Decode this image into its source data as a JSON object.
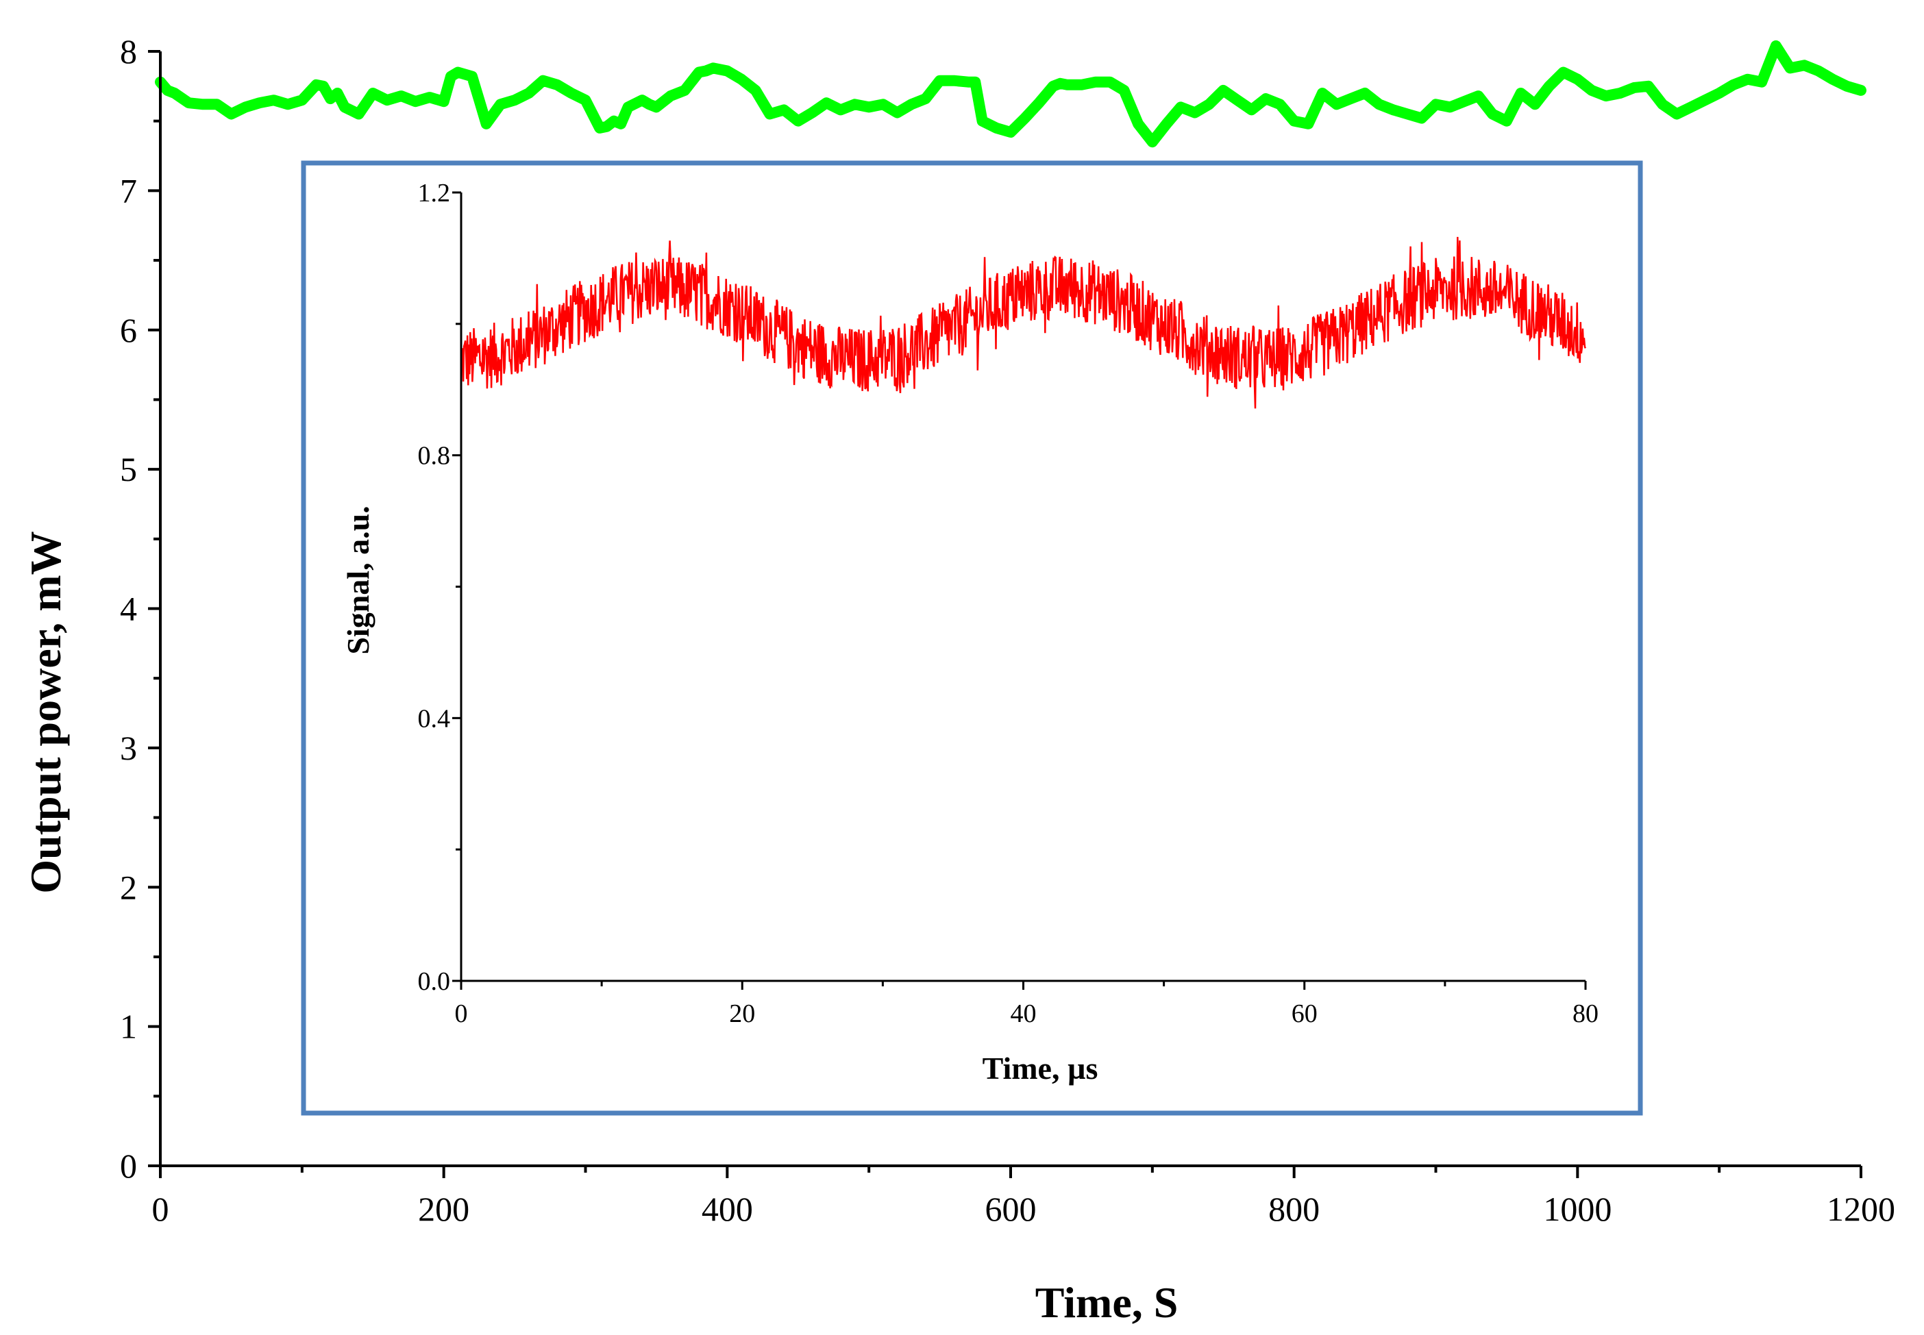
{
  "chart_data": [
    {
      "type": "line",
      "role": "main",
      "xlabel": "Time, S",
      "ylabel": "Output power, mW",
      "xlim": [
        0,
        1200
      ],
      "ylim": [
        0,
        8
      ],
      "xticks": [
        0,
        200,
        400,
        600,
        800,
        1000,
        1200
      ],
      "xtick_labels": [
        "0",
        "200",
        "400",
        "600",
        "800",
        "1000",
        "1200"
      ],
      "yticks": [
        0,
        1,
        2,
        3,
        4,
        5,
        6,
        7,
        8
      ],
      "ytick_labels": [
        "0",
        "1",
        "2",
        "3",
        "4",
        "5",
        "6",
        "7",
        "8"
      ],
      "series": [
        {
          "name": "Output power",
          "color": "#00ff00",
          "x": [
            0,
            5,
            10,
            20,
            30,
            40,
            50,
            60,
            70,
            80,
            90,
            100,
            110,
            115,
            120,
            125,
            130,
            140,
            150,
            160,
            170,
            180,
            190,
            200,
            205,
            210,
            220,
            225,
            230,
            240,
            250,
            260,
            270,
            280,
            290,
            300,
            310,
            315,
            320,
            325,
            330,
            340,
            345,
            350,
            360,
            370,
            380,
            385,
            390,
            400,
            410,
            420,
            430,
            440,
            450,
            460,
            470,
            480,
            490,
            500,
            510,
            520,
            530,
            540,
            550,
            560,
            570,
            575,
            580,
            590,
            600,
            610,
            620,
            630,
            635,
            640,
            650,
            660,
            670,
            680,
            690,
            700,
            710,
            720,
            730,
            740,
            750,
            760,
            770,
            780,
            790,
            800,
            810,
            820,
            830,
            840,
            850,
            860,
            870,
            880,
            890,
            900,
            910,
            920,
            930,
            940,
            950,
            960,
            970,
            980,
            990,
            1000,
            1010,
            1020,
            1030,
            1040,
            1050,
            1060,
            1070,
            1080,
            1090,
            1100,
            1110,
            1120,
            1130,
            1140,
            1150,
            1160,
            1170,
            1180,
            1190,
            1200
          ],
          "y": [
            7.78,
            7.72,
            7.7,
            7.63,
            7.62,
            7.62,
            7.55,
            7.6,
            7.63,
            7.65,
            7.62,
            7.65,
            7.76,
            7.75,
            7.66,
            7.7,
            7.6,
            7.55,
            7.7,
            7.65,
            7.68,
            7.64,
            7.67,
            7.64,
            7.82,
            7.85,
            7.82,
            7.65,
            7.48,
            7.62,
            7.65,
            7.7,
            7.79,
            7.76,
            7.7,
            7.65,
            7.45,
            7.46,
            7.5,
            7.48,
            7.6,
            7.65,
            7.62,
            7.6,
            7.68,
            7.72,
            7.85,
            7.86,
            7.88,
            7.86,
            7.8,
            7.72,
            7.55,
            7.58,
            7.5,
            7.56,
            7.63,
            7.58,
            7.62,
            7.6,
            7.62,
            7.56,
            7.62,
            7.66,
            7.79,
            7.79,
            7.78,
            7.78,
            7.5,
            7.45,
            7.42,
            7.52,
            7.63,
            7.75,
            7.77,
            7.76,
            7.76,
            7.78,
            7.78,
            7.72,
            7.48,
            7.35,
            7.48,
            7.6,
            7.56,
            7.62,
            7.72,
            7.65,
            7.58,
            7.66,
            7.62,
            7.5,
            7.48,
            7.7,
            7.62,
            7.66,
            7.7,
            7.62,
            7.58,
            7.55,
            7.52,
            7.62,
            7.6,
            7.64,
            7.68,
            7.55,
            7.5,
            7.7,
            7.62,
            7.75,
            7.85,
            7.8,
            7.72,
            7.68,
            7.7,
            7.74,
            7.75,
            7.62,
            7.55,
            7.6,
            7.65,
            7.7,
            7.76,
            7.8,
            7.78,
            8.04,
            7.88,
            7.9,
            7.86,
            7.8,
            7.75,
            7.72
          ]
        }
      ]
    },
    {
      "type": "line",
      "role": "inset",
      "xlabel": "Time, µs",
      "ylabel": "Signal, a.u.",
      "xlim": [
        0,
        80
      ],
      "ylim": [
        0.0,
        1.2
      ],
      "xticks": [
        0,
        20,
        40,
        60,
        80
      ],
      "xtick_labels": [
        "0",
        "20",
        "40",
        "60",
        "80"
      ],
      "yticks": [
        0.0,
        0.4,
        0.8,
        1.2
      ],
      "ytick_labels": [
        "0.0",
        "0.4",
        "0.8",
        "1.2"
      ],
      "border_color": "#4f81bd",
      "series": [
        {
          "name": "Signal",
          "color": "#ff0000",
          "description": "noisy sinusoid",
          "mean": 1.0,
          "amplitude": 0.055,
          "period_us": 28.5,
          "phase_min_us": 0.0,
          "noise_band": 0.05,
          "x_start": 0,
          "x_end": 80
        }
      ]
    }
  ]
}
